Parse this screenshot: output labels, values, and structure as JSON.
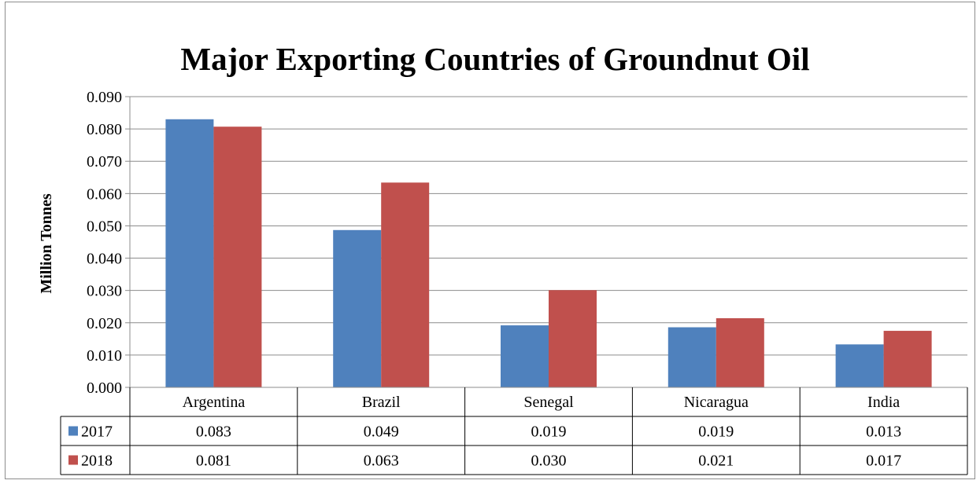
{
  "chart_data": {
    "type": "bar",
    "title": "Major Exporting Countries of Groundnut Oil",
    "xlabel": "",
    "ylabel": "Million Tonnes",
    "ylim": [
      0,
      0.09
    ],
    "yticks": [
      "0.000",
      "0.010",
      "0.020",
      "0.030",
      "0.040",
      "0.050",
      "0.060",
      "0.070",
      "0.080",
      "0.090"
    ],
    "grid": true,
    "legend": "data-table",
    "categories": [
      "Argentina",
      "Brazil",
      "Senegal",
      "Nicaragua",
      "India"
    ],
    "series": [
      {
        "name": "2017",
        "color": "#4f81bd",
        "values": [
          0.083,
          0.0487,
          0.0192,
          0.0186,
          0.0133
        ],
        "labels": [
          "0.083",
          "0.049",
          "0.019",
          "0.019",
          "0.013"
        ]
      },
      {
        "name": "2018",
        "color": "#c0504d",
        "values": [
          0.0807,
          0.0634,
          0.0301,
          0.0214,
          0.0175
        ],
        "labels": [
          "0.081",
          "0.063",
          "0.030",
          "0.021",
          "0.017"
        ]
      }
    ]
  }
}
